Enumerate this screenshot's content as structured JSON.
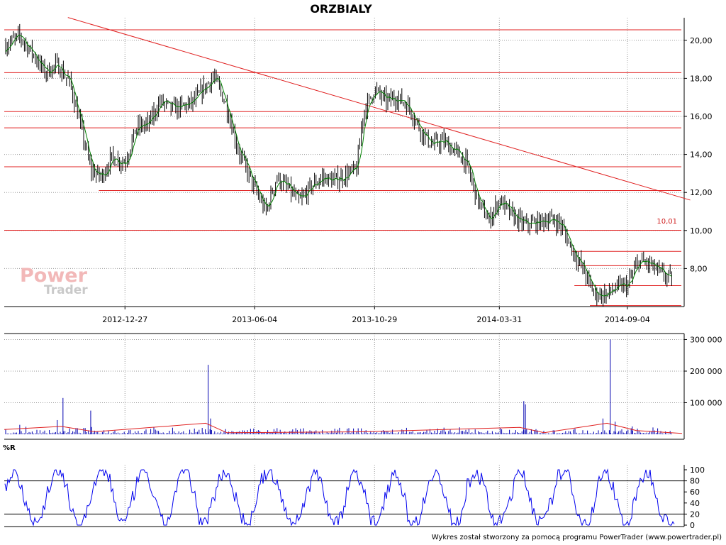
{
  "chart_data": {
    "type": "stock-chart",
    "title": "ORZBIALY",
    "footer": "Wykres został stworzony za pomocą programu PowerTrader (www.powertrader.pl)",
    "watermark": {
      "line1": "Power",
      "line2": "Trader"
    },
    "colors": {
      "candles": "#000000",
      "moving_average": "#008000",
      "lines": "#e02020",
      "volume": "#0000b0",
      "volume_avg": "#e02020",
      "williams": "#0000ee"
    },
    "price_panel": {
      "ylim": [
        6.0,
        21.0
      ],
      "yticks": [
        "8,00",
        "10,00",
        "12,00",
        "14,00",
        "16,00",
        "18,00",
        "20,00"
      ],
      "xticks": [
        "2012-12-27",
        "2013-06-04",
        "2013-10-29",
        "2014-03-31",
        "2014-09-04"
      ],
      "annotation_label": "10,01",
      "horizontal_levels": [
        20.55,
        18.3,
        16.25,
        15.4,
        13.35,
        12.1,
        10.01,
        8.9,
        8.15,
        7.1,
        6.05
      ],
      "trend_line": {
        "from": [
          "2012-10-18",
          21.2
        ],
        "to": [
          "2014-11-20",
          11.6
        ]
      },
      "series": [
        {
          "date": "2012-08-01",
          "close": 19.7
        },
        {
          "date": "2012-08-20",
          "close": 20.2
        },
        {
          "date": "2012-09-05",
          "close": 19.3
        },
        {
          "date": "2012-09-20",
          "close": 18.3
        },
        {
          "date": "2012-10-05",
          "close": 18.7
        },
        {
          "date": "2012-10-20",
          "close": 17.8
        },
        {
          "date": "2012-11-01",
          "close": 15.8
        },
        {
          "date": "2012-11-15",
          "close": 13.2
        },
        {
          "date": "2012-11-28",
          "close": 12.8
        },
        {
          "date": "2012-12-10",
          "close": 13.8
        },
        {
          "date": "2012-12-27",
          "close": 13.6
        },
        {
          "date": "2013-01-10",
          "close": 15.4
        },
        {
          "date": "2013-01-25",
          "close": 15.6
        },
        {
          "date": "2013-02-08",
          "close": 16.8
        },
        {
          "date": "2013-02-22",
          "close": 16.4
        },
        {
          "date": "2013-03-08",
          "close": 16.5
        },
        {
          "date": "2013-03-22",
          "close": 16.8
        },
        {
          "date": "2013-04-05",
          "close": 17.6
        },
        {
          "date": "2013-04-15",
          "close": 18.1
        },
        {
          "date": "2013-04-30",
          "close": 16.6
        },
        {
          "date": "2013-05-15",
          "close": 14.2
        },
        {
          "date": "2013-06-04",
          "close": 12.2
        },
        {
          "date": "2013-06-18",
          "close": 11.0
        },
        {
          "date": "2013-07-01",
          "close": 12.8
        },
        {
          "date": "2013-07-15",
          "close": 12.2
        },
        {
          "date": "2013-07-29",
          "close": 11.5
        },
        {
          "date": "2013-08-12",
          "close": 12.3
        },
        {
          "date": "2013-08-26",
          "close": 12.8
        },
        {
          "date": "2013-09-09",
          "close": 12.6
        },
        {
          "date": "2013-09-23",
          "close": 12.9
        },
        {
          "date": "2013-10-07",
          "close": 13.2
        },
        {
          "date": "2013-10-15",
          "close": 16.2
        },
        {
          "date": "2013-10-29",
          "close": 17.4
        },
        {
          "date": "2013-11-12",
          "close": 16.8
        },
        {
          "date": "2013-11-26",
          "close": 17.0
        },
        {
          "date": "2013-12-10",
          "close": 16.5
        },
        {
          "date": "2013-12-24",
          "close": 15.3
        },
        {
          "date": "2014-01-07",
          "close": 14.5
        },
        {
          "date": "2014-01-21",
          "close": 14.7
        },
        {
          "date": "2014-02-04",
          "close": 14.2
        },
        {
          "date": "2014-02-18",
          "close": 13.6
        },
        {
          "date": "2014-03-04",
          "close": 11.6
        },
        {
          "date": "2014-03-18",
          "close": 10.5
        },
        {
          "date": "2014-03-31",
          "close": 11.6
        },
        {
          "date": "2014-04-15",
          "close": 10.8
        },
        {
          "date": "2014-05-01",
          "close": 10.3
        },
        {
          "date": "2014-05-15",
          "close": 10.4
        },
        {
          "date": "2014-05-30",
          "close": 10.6
        },
        {
          "date": "2014-06-13",
          "close": 10.4
        },
        {
          "date": "2014-06-27",
          "close": 9.1
        },
        {
          "date": "2014-07-11",
          "close": 8.0
        },
        {
          "date": "2014-07-25",
          "close": 6.7
        },
        {
          "date": "2014-08-08",
          "close": 6.6
        },
        {
          "date": "2014-08-22",
          "close": 7.0
        },
        {
          "date": "2014-09-04",
          "close": 7.1
        },
        {
          "date": "2014-09-18",
          "close": 8.4
        },
        {
          "date": "2014-10-02",
          "close": 8.2
        },
        {
          "date": "2014-10-16",
          "close": 7.7
        },
        {
          "date": "2014-10-30",
          "close": 7.4
        }
      ]
    },
    "volume_panel": {
      "ylim": [
        0,
        310000
      ],
      "yticks": [
        "100 000",
        "200 000",
        "300 000"
      ],
      "spikes": [
        {
          "date": "2012-08-20",
          "value": 30000
        },
        {
          "date": "2012-10-05",
          "value": 45000
        },
        {
          "date": "2012-10-12",
          "value": 115000
        },
        {
          "date": "2012-11-15",
          "value": 75000
        },
        {
          "date": "2013-04-08",
          "value": 220000
        },
        {
          "date": "2013-04-11",
          "value": 50000
        },
        {
          "date": "2014-04-30",
          "value": 105000
        },
        {
          "date": "2014-05-02",
          "value": 95000
        },
        {
          "date": "2014-08-05",
          "value": 50000
        },
        {
          "date": "2014-08-14",
          "value": 300000
        },
        {
          "date": "2014-08-20",
          "value": 40000
        },
        {
          "date": "2014-09-10",
          "value": 25000
        }
      ],
      "average": [
        {
          "date": "2012-08-01",
          "value": 15000
        },
        {
          "date": "2012-10-10",
          "value": 25000
        },
        {
          "date": "2012-11-20",
          "value": 8000
        },
        {
          "date": "2013-04-05",
          "value": 35000
        },
        {
          "date": "2013-05-01",
          "value": 5000
        },
        {
          "date": "2013-10-20",
          "value": 8000
        },
        {
          "date": "2014-04-25",
          "value": 22000
        },
        {
          "date": "2014-05-25",
          "value": 5000
        },
        {
          "date": "2014-08-10",
          "value": 35000
        },
        {
          "date": "2014-09-15",
          "value": 12000
        },
        {
          "date": "2014-11-10",
          "value": 3000
        }
      ]
    },
    "williams_panel": {
      "label": "%R",
      "ylim": [
        0,
        100
      ],
      "yticks": [
        "0",
        "20",
        "40",
        "60",
        "80",
        "100"
      ],
      "levels": [
        20,
        80
      ]
    }
  }
}
